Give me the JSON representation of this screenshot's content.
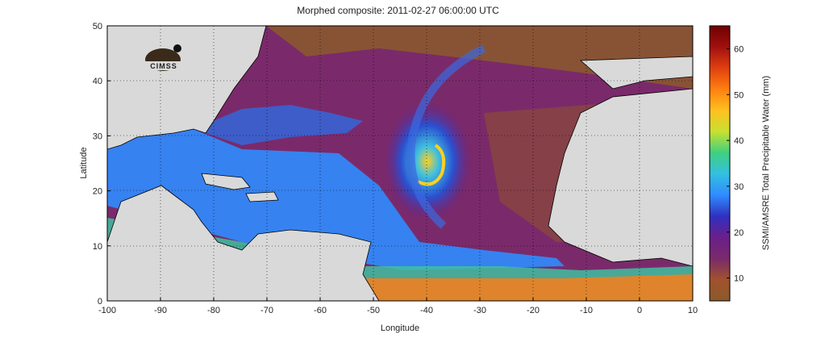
{
  "figure": {
    "title": "Morphed composite: 2011-02-27 06:00:00 UTC",
    "xlabel": "Longitude",
    "ylabel": "Latitude",
    "colorbar_label": "SSMI/AMSRE Total Precipitable Water (mm)",
    "logo_text": "CIMSS"
  },
  "map": {
    "lon_range": [
      -100,
      10
    ],
    "lat_range": [
      0,
      50
    ],
    "x_ticks": [
      -100,
      -90,
      -80,
      -70,
      -60,
      -50,
      -40,
      -30,
      -20,
      -10,
      0,
      10
    ],
    "y_ticks": [
      0,
      10,
      20,
      30,
      40,
      50
    ],
    "grid": "dotted",
    "land_color": "#d9d9d9",
    "feature": "tropical moisture plume with spiral band centered near 37W 28N"
  },
  "colorbar": {
    "range": [
      5,
      65
    ],
    "ticks": [
      10,
      20,
      30,
      40,
      50,
      60
    ],
    "colors": [
      "#8b5a2b",
      "#a0522d",
      "#7a2a6a",
      "#6a1f8a",
      "#3030c0",
      "#2f8cff",
      "#33c0e0",
      "#40d080",
      "#c8e030",
      "#ffc020",
      "#ff8010",
      "#e04010",
      "#a01010",
      "#700000"
    ]
  }
}
